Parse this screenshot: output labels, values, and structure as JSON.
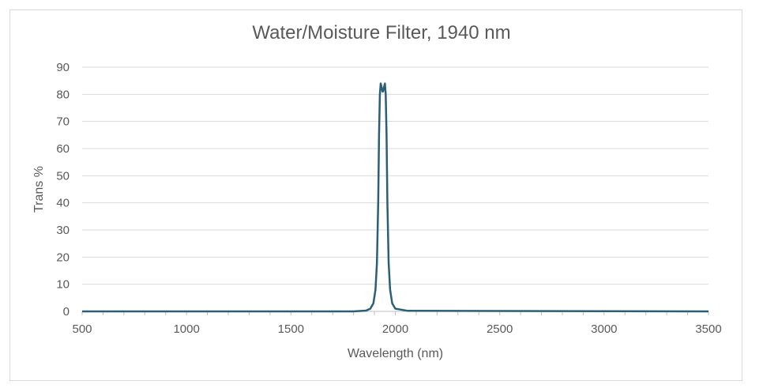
{
  "chart_data": {
    "type": "line",
    "title": "Water/Moisture Filter, 1940 nm",
    "xlabel": "Wavelength (nm)",
    "ylabel": "Trans %",
    "xlim": [
      500,
      3500
    ],
    "ylim": [
      0,
      90
    ],
    "x_ticks": [
      500,
      1000,
      1500,
      2000,
      2500,
      3000,
      3500
    ],
    "y_ticks": [
      0,
      10,
      20,
      30,
      40,
      50,
      60,
      70,
      80,
      90
    ],
    "grid": true,
    "legend": "none",
    "series": [
      {
        "color": "#2b5f75",
        "x": [
          500,
          1800,
          1860,
          1880,
          1895,
          1905,
          1912,
          1918,
          1922,
          1926,
          1930,
          1933,
          1936,
          1939,
          1940,
          1941,
          1944,
          1947,
          1950,
          1954,
          1958,
          1962,
          1968,
          1975,
          1985,
          2000,
          2060,
          3500
        ],
        "y": [
          0,
          0,
          0.3,
          1,
          3,
          8,
          18,
          40,
          65,
          80,
          84,
          83,
          82,
          81,
          81,
          81,
          82,
          83,
          84,
          80,
          65,
          40,
          18,
          8,
          3,
          1,
          0.2,
          0
        ]
      }
    ]
  }
}
